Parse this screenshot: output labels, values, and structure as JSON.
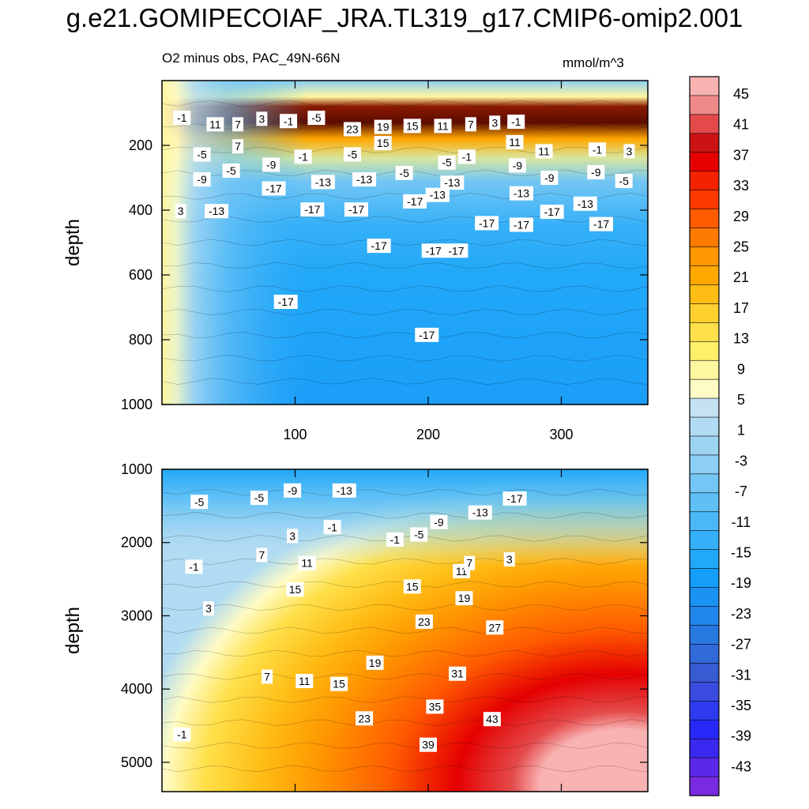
{
  "title": "g.e21.GOMIPECOIAF_JRA.TL319_g17.CMIP6-omip2.001",
  "chart_data": {
    "type": "contour",
    "subtitle": "O2 minus obs, PAC_49N-66N",
    "units": "mmol/m^3",
    "xlabel": "",
    "ylabel": "depth",
    "xlim": [
      0,
      365
    ],
    "xticks": [
      100,
      200,
      300
    ],
    "panels": [
      {
        "name": "upper",
        "ylim": [
          0,
          1000
        ],
        "yticks": [
          200,
          400,
          600,
          800,
          1000
        ],
        "ylabel": "depth",
        "contour_labels": [
          {
            "x": 15,
            "y": 115,
            "v": "-1"
          },
          {
            "x": 40,
            "y": 135,
            "v": "11"
          },
          {
            "x": 57,
            "y": 135,
            "v": "7"
          },
          {
            "x": 75,
            "y": 118,
            "v": "3"
          },
          {
            "x": 95,
            "y": 125,
            "v": "-1"
          },
          {
            "x": 116,
            "y": 115,
            "v": "-5"
          },
          {
            "x": 143,
            "y": 150,
            "v": "23"
          },
          {
            "x": 166,
            "y": 143,
            "v": "19"
          },
          {
            "x": 188,
            "y": 140,
            "v": "15"
          },
          {
            "x": 211,
            "y": 140,
            "v": "11"
          },
          {
            "x": 232,
            "y": 135,
            "v": "7"
          },
          {
            "x": 250,
            "y": 130,
            "v": "3"
          },
          {
            "x": 266,
            "y": 127,
            "v": "-1"
          },
          {
            "x": 265,
            "y": 190,
            "v": "11"
          },
          {
            "x": 166,
            "y": 193,
            "v": "15"
          },
          {
            "x": 57,
            "y": 203,
            "v": "7"
          },
          {
            "x": 30,
            "y": 228,
            "v": "-5"
          },
          {
            "x": 106,
            "y": 235,
            "v": "-1"
          },
          {
            "x": 143,
            "y": 228,
            "v": "-5"
          },
          {
            "x": 214,
            "y": 253,
            "v": "-5"
          },
          {
            "x": 229,
            "y": 235,
            "v": "-1"
          },
          {
            "x": 267,
            "y": 262,
            "v": "-9"
          },
          {
            "x": 287,
            "y": 218,
            "v": "11"
          },
          {
            "x": 327,
            "y": 213,
            "v": "-1"
          },
          {
            "x": 351,
            "y": 218,
            "v": "3"
          },
          {
            "x": 82,
            "y": 260,
            "v": "-9"
          },
          {
            "x": 52,
            "y": 278,
            "v": "-5"
          },
          {
            "x": 30,
            "y": 305,
            "v": "-9"
          },
          {
            "x": 121,
            "y": 313,
            "v": "-13"
          },
          {
            "x": 152,
            "y": 305,
            "v": "-13"
          },
          {
            "x": 182,
            "y": 285,
            "v": "-5"
          },
          {
            "x": 218,
            "y": 315,
            "v": "-13"
          },
          {
            "x": 291,
            "y": 300,
            "v": "-9"
          },
          {
            "x": 326,
            "y": 283,
            "v": "-9"
          },
          {
            "x": 347,
            "y": 310,
            "v": "-5"
          },
          {
            "x": 84,
            "y": 333,
            "v": "-17"
          },
          {
            "x": 190,
            "y": 373,
            "v": "-17"
          },
          {
            "x": 207,
            "y": 353,
            "v": "-13"
          },
          {
            "x": 270,
            "y": 348,
            "v": "-13"
          },
          {
            "x": 318,
            "y": 380,
            "v": "-13"
          },
          {
            "x": 14,
            "y": 403,
            "v": "3"
          },
          {
            "x": 41,
            "y": 403,
            "v": "-13"
          },
          {
            "x": 113,
            "y": 398,
            "v": "-17"
          },
          {
            "x": 146,
            "y": 398,
            "v": "-17"
          },
          {
            "x": 244,
            "y": 440,
            "v": "-17"
          },
          {
            "x": 270,
            "y": 445,
            "v": "-17"
          },
          {
            "x": 293,
            "y": 405,
            "v": "-17"
          },
          {
            "x": 330,
            "y": 443,
            "v": "-17"
          },
          {
            "x": 163,
            "y": 510,
            "v": "-17"
          },
          {
            "x": 204,
            "y": 525,
            "v": "-17"
          },
          {
            "x": 221,
            "y": 525,
            "v": "-17"
          },
          {
            "x": 93,
            "y": 683,
            "v": "-17"
          },
          {
            "x": 199,
            "y": 785,
            "v": "-17"
          }
        ]
      },
      {
        "name": "lower",
        "ylim": [
          1000,
          5400
        ],
        "yticks": [
          1000,
          2000,
          3000,
          4000,
          5000
        ],
        "ylabel": "depth",
        "contour_labels": [
          {
            "x": 28,
            "y": 1445,
            "v": "-5"
          },
          {
            "x": 73,
            "y": 1390,
            "v": "-5"
          },
          {
            "x": 98,
            "y": 1290,
            "v": "-9"
          },
          {
            "x": 137,
            "y": 1290,
            "v": "-13"
          },
          {
            "x": 265,
            "y": 1400,
            "v": "-17"
          },
          {
            "x": 239,
            "y": 1590,
            "v": "-13"
          },
          {
            "x": 208,
            "y": 1720,
            "v": "-9"
          },
          {
            "x": 128,
            "y": 1790,
            "v": "-1"
          },
          {
            "x": 193,
            "y": 1890,
            "v": "-5"
          },
          {
            "x": 175,
            "y": 1960,
            "v": "-1"
          },
          {
            "x": 98,
            "y": 1910,
            "v": "3"
          },
          {
            "x": 75,
            "y": 2170,
            "v": "7"
          },
          {
            "x": 109,
            "y": 2280,
            "v": "11"
          },
          {
            "x": 24,
            "y": 2330,
            "v": "-1"
          },
          {
            "x": 225,
            "y": 2390,
            "v": "11"
          },
          {
            "x": 231,
            "y": 2280,
            "v": "7"
          },
          {
            "x": 261,
            "y": 2230,
            "v": "3"
          },
          {
            "x": 100,
            "y": 2640,
            "v": "15"
          },
          {
            "x": 188,
            "y": 2600,
            "v": "15"
          },
          {
            "x": 227,
            "y": 2760,
            "v": "19"
          },
          {
            "x": 35,
            "y": 2900,
            "v": "3"
          },
          {
            "x": 197,
            "y": 3080,
            "v": "23"
          },
          {
            "x": 250,
            "y": 3160,
            "v": "27"
          },
          {
            "x": 160,
            "y": 3640,
            "v": "19"
          },
          {
            "x": 79,
            "y": 3830,
            "v": "7"
          },
          {
            "x": 107,
            "y": 3890,
            "v": "11"
          },
          {
            "x": 133,
            "y": 3930,
            "v": "15"
          },
          {
            "x": 222,
            "y": 3790,
            "v": "31"
          },
          {
            "x": 205,
            "y": 4240,
            "v": "35"
          },
          {
            "x": 248,
            "y": 4410,
            "v": "43"
          },
          {
            "x": 152,
            "y": 4400,
            "v": "23"
          },
          {
            "x": 15,
            "y": 4620,
            "v": "-1"
          },
          {
            "x": 200,
            "y": 4760,
            "v": "39"
          }
        ]
      }
    ],
    "colorbar": {
      "labels": [
        "45",
        "41",
        "37",
        "33",
        "29",
        "25",
        "21",
        "17",
        "13",
        "9",
        "5",
        "1",
        "-3",
        "-7",
        "-11",
        "-15",
        "-19",
        "-23",
        "-27",
        "-31",
        "-35",
        "-39",
        "-43"
      ],
      "colors": [
        "#f9b2b2",
        "#f08a8a",
        "#e44a4a",
        "#cc1212",
        "#e50000",
        "#f52200",
        "#ff3a00",
        "#ff5c00",
        "#ff7a00",
        "#ff9700",
        "#ffa800",
        "#ffbd15",
        "#ffd02e",
        "#ffe04a",
        "#fff06a",
        "#fff6a0",
        "#fffbc4",
        "#c4e2f2",
        "#b0dbf2",
        "#9dd4f2",
        "#8ccef4",
        "#74c6f4",
        "#5fc0f6",
        "#4ab8f6",
        "#35b0f8",
        "#22a8f8",
        "#149ef8",
        "#1a92f2",
        "#2186ea",
        "#2878e2",
        "#306ad8",
        "#385ad2",
        "#3a4ce0",
        "#2e3aee",
        "#2828f8",
        "#3a28f0",
        "#5a28e8",
        "#7a2ae0"
      ]
    }
  }
}
